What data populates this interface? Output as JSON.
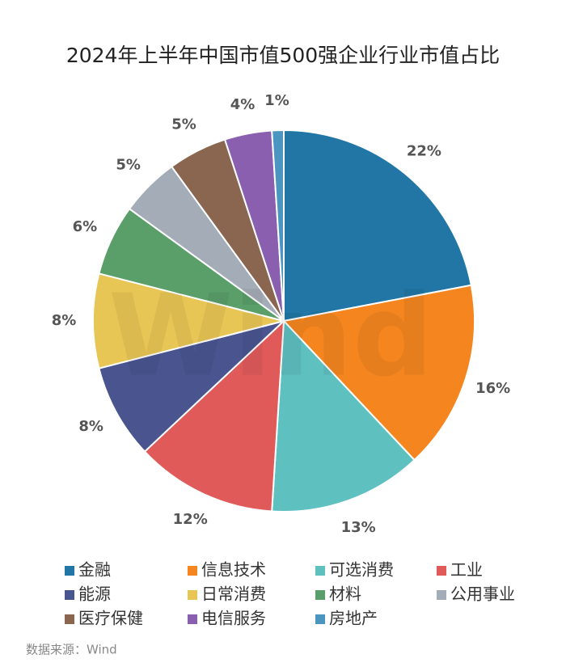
{
  "chart_data": {
    "type": "pie",
    "title": "2024年上半年中国市值500强企业行业市值占比",
    "categories": [
      "金融",
      "信息技术",
      "可选消费",
      "工业",
      "能源",
      "日常消费",
      "材料",
      "公用事业",
      "医疗保健",
      "电信服务",
      "房地产"
    ],
    "values": [
      22,
      16,
      13,
      12,
      8,
      8,
      6,
      5,
      5,
      4,
      1
    ],
    "value_labels": [
      "22%",
      "16%",
      "13%",
      "12%",
      "8%",
      "8%",
      "6%",
      "5%",
      "5%",
      "4%",
      "1%"
    ],
    "colors": [
      "#2176a5",
      "#f5861f",
      "#5fc0c0",
      "#e05a5a",
      "#4a5590",
      "#e8c655",
      "#5a9e6a",
      "#a4acb7",
      "#8a6651",
      "#8b5fb0",
      "#4a96c0"
    ],
    "legend": "bottom",
    "watermark": "Wind",
    "source": "数据来源：Wind"
  }
}
